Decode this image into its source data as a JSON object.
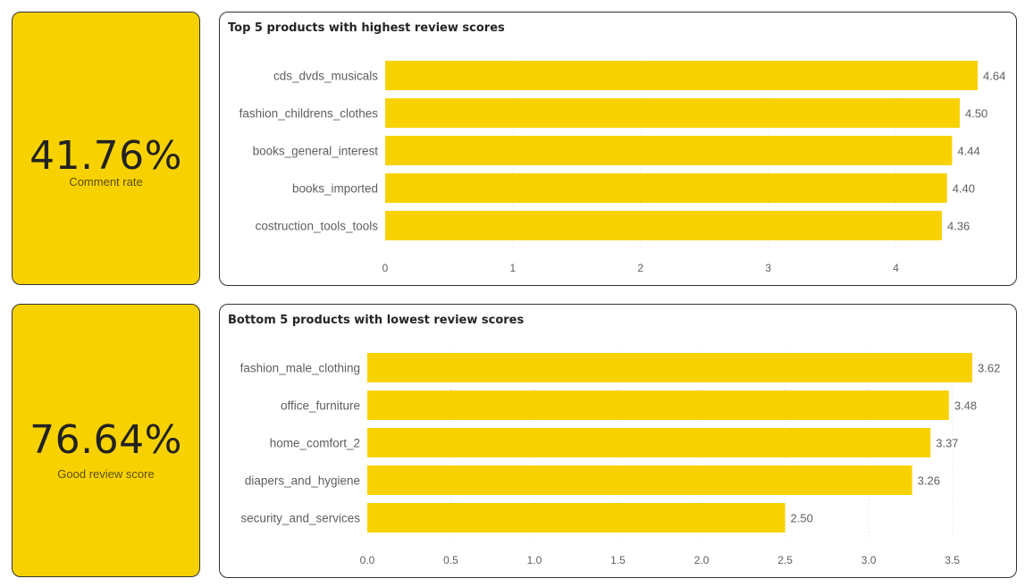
{
  "kpis": [
    {
      "value": "41.76%",
      "label": "Comment rate"
    },
    {
      "value": "76.64%",
      "label": "Good review score"
    }
  ],
  "colors": {
    "accent": "#F8D200",
    "text": "#605E5C",
    "gridline": "#E1E1E1"
  },
  "chart_data": [
    {
      "type": "bar",
      "orientation": "horizontal",
      "title": "Top 5 products with highest review scores",
      "categories": [
        "cds_dvds_musicals",
        "fashion_childrens_clothes",
        "books_general_interest",
        "books_imported",
        "costruction_tools_tools"
      ],
      "values": [
        4.64,
        4.5,
        4.44,
        4.4,
        4.36
      ],
      "data_labels": [
        "4.64",
        "4.50",
        "4.44",
        "4.40",
        "4.36"
      ],
      "xticks": [
        0,
        1,
        2,
        3,
        4
      ],
      "xtick_labels": [
        "0",
        "1",
        "2",
        "3",
        "4"
      ],
      "xlim": [
        0,
        4.64
      ],
      "grid": true
    },
    {
      "type": "bar",
      "orientation": "horizontal",
      "title": "Bottom 5 products with lowest review scores",
      "categories": [
        "fashion_male_clothing",
        "office_furniture",
        "home_comfort_2",
        "diapers_and_hygiene",
        "security_and_services"
      ],
      "values": [
        3.62,
        3.48,
        3.37,
        3.26,
        2.5
      ],
      "data_labels": [
        "3.62",
        "3.48",
        "3.37",
        "3.26",
        "2.50"
      ],
      "xticks": [
        0,
        0.5,
        1,
        1.5,
        2,
        2.5,
        3,
        3.5
      ],
      "xtick_labels": [
        "0.0",
        "0.5",
        "1.0",
        "1.5",
        "2.0",
        "2.5",
        "3.0",
        "3.5"
      ],
      "xlim": [
        0,
        3.62
      ],
      "grid": true
    }
  ]
}
